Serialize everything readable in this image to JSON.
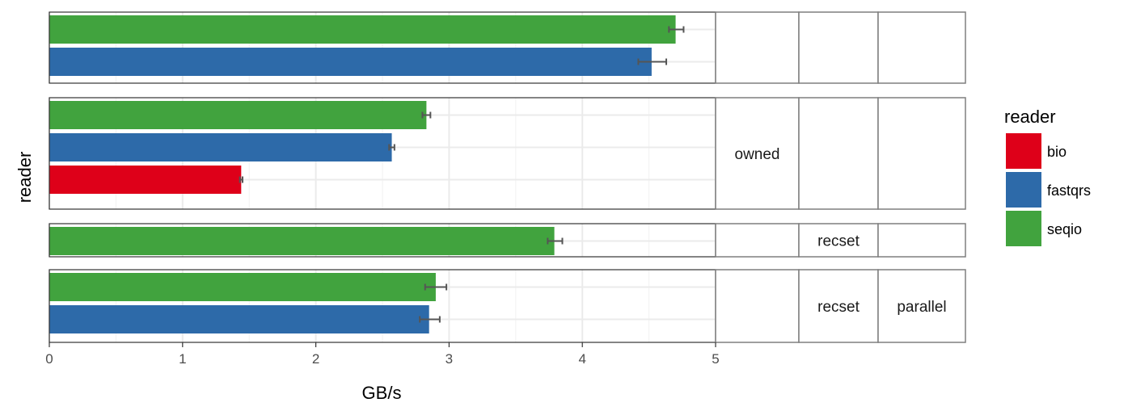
{
  "chart_data": {
    "type": "bar",
    "orientation": "horizontal",
    "xlabel": "GB/s",
    "ylabel": "reader",
    "xlim": [
      0,
      5
    ],
    "xticks": [
      "0",
      "1",
      "2",
      "3",
      "4",
      "5"
    ],
    "grid": true,
    "legend": {
      "title": "reader",
      "placement": "right",
      "entries": [
        {
          "label": "bio",
          "color": "#de0019"
        },
        {
          "label": "fastqrs",
          "color": "#2d6aa9"
        },
        {
          "label": "seqio",
          "color": "#41a33e"
        }
      ]
    },
    "facet_columns": [
      "owned",
      "recset",
      "parallel"
    ],
    "panels": [
      {
        "strips": [
          "",
          "",
          ""
        ],
        "bars": [
          {
            "reader": "seqio",
            "value": 4.7,
            "error": [
              4.65,
              4.76
            ]
          },
          {
            "reader": "fastqrs",
            "value": 4.52,
            "error": [
              4.42,
              4.63
            ]
          }
        ]
      },
      {
        "strips": [
          "owned",
          "",
          ""
        ],
        "bars": [
          {
            "reader": "seqio",
            "value": 2.83,
            "error": [
              2.8,
              2.86
            ]
          },
          {
            "reader": "fastqrs",
            "value": 2.57,
            "error": [
              2.55,
              2.59
            ]
          },
          {
            "reader": "bio",
            "value": 1.44,
            "error": [
              1.43,
              1.45
            ]
          }
        ]
      },
      {
        "strips": [
          "",
          "recset",
          ""
        ],
        "bars": [
          {
            "reader": "seqio",
            "value": 3.79,
            "error": [
              3.74,
              3.85
            ]
          }
        ]
      },
      {
        "strips": [
          "",
          "recset",
          "parallel"
        ],
        "bars": [
          {
            "reader": "seqio",
            "value": 2.9,
            "error": [
              2.82,
              2.98
            ]
          },
          {
            "reader": "fastqrs",
            "value": 2.85,
            "error": [
              2.78,
              2.93
            ]
          }
        ]
      }
    ]
  }
}
